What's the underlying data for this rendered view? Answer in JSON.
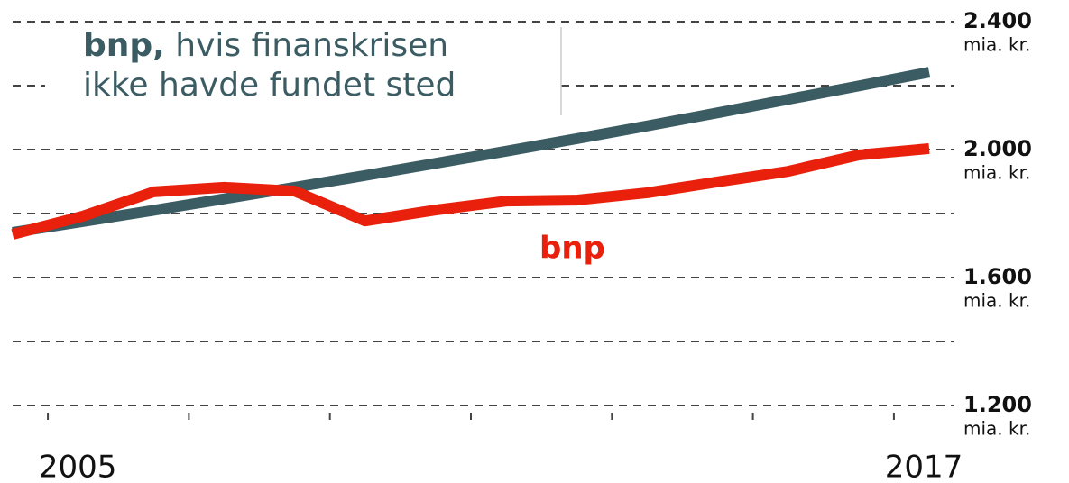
{
  "chart_data": {
    "type": "line",
    "x": [
      2004,
      2005,
      2006,
      2007,
      2008,
      2009,
      2010,
      2011,
      2012,
      2013,
      2014,
      2015,
      2016,
      2017
    ],
    "xlim": [
      2004,
      2017
    ],
    "xticks": [
      2005,
      2017
    ],
    "minor_xticks": [
      2004.5,
      2006.5,
      2008.5,
      2010.5,
      2012.5,
      2014.5,
      2016.5
    ],
    "ylim": [
      1200,
      2400
    ],
    "yticks": [
      {
        "value": 1200,
        "label": "1.200"
      },
      {
        "value": 1600,
        "label": "1.600"
      },
      {
        "value": 2000,
        "label": "2.000"
      },
      {
        "value": 2400,
        "label": "2.400"
      }
    ],
    "minor_yticks": [
      1400,
      1800,
      2200
    ],
    "y_unit": "mia. kr.",
    "grid": true,
    "series": [
      {
        "name": "bnp",
        "color": "#e8200c",
        "values": [
          1735,
          1792,
          1868,
          1882,
          1870,
          1777,
          1811,
          1839,
          1842,
          1865,
          1899,
          1932,
          1983,
          2003
        ]
      },
      {
        "name": "bnp,",
        "name_rest": [
          "hvis finanskrisen",
          "ikke havde fundet sted"
        ],
        "color": "#3b5c63",
        "values": [
          1741,
          1775,
          1810,
          1846,
          1882,
          1919,
          1957,
          1995,
          2034,
          2074,
          2115,
          2157,
          2199,
          2242
        ]
      }
    ]
  }
}
